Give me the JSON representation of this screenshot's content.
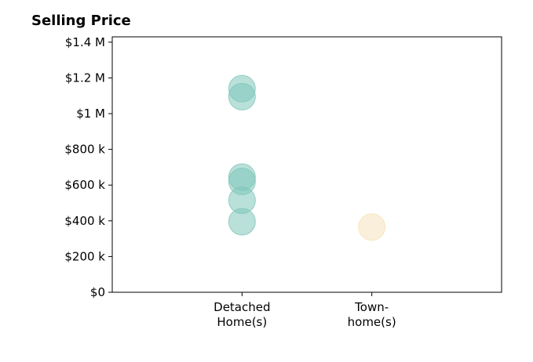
{
  "chart_data": {
    "type": "scatter",
    "title": "Selling Price",
    "xlabel": "",
    "ylabel": "",
    "categories": [
      [
        "Detached",
        "Home(s)"
      ],
      [
        "Town-",
        "home(s)"
      ]
    ],
    "ylim": [
      0,
      1430000
    ],
    "yticks": [
      0,
      200000,
      400000,
      600000,
      800000,
      1000000,
      1200000,
      1400000
    ],
    "ytick_labels": [
      "$0",
      "$200 k",
      "$400 k",
      "$600 k",
      "$800 k",
      "$1 M",
      "$1.2 M",
      "$1.4 M"
    ],
    "grid": false,
    "series": [
      {
        "category_index": 0,
        "color": "#80c6ba",
        "values": [
          1140000,
          1095000,
          645000,
          620000,
          515000,
          395000
        ]
      },
      {
        "category_index": 1,
        "color": "#f6e2bb",
        "values": [
          365000
        ]
      }
    ]
  }
}
